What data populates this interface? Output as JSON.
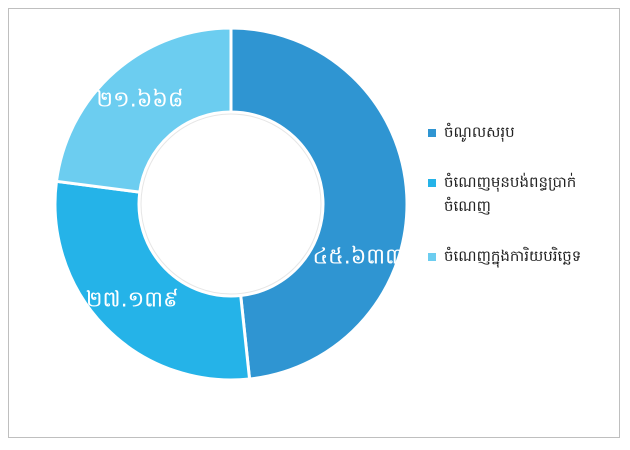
{
  "chart_data": {
    "type": "donut",
    "categories": [
      "ចំណូលសរុប",
      "ចំណេញមុនបង់ពន្ធប្រាក់ចំណេញ",
      "ចំណេញក្នុងការិយបរិច្ឆេទ"
    ],
    "values": [
      45.633,
      27.139,
      21.668
    ],
    "value_labels": [
      "៤៥.៦៣៣",
      "២៧.១៣៩",
      "២១.៦៦៨"
    ],
    "colors": [
      "#2f95d2",
      "#25b3e8",
      "#6ccdf0"
    ],
    "legend": "right"
  }
}
